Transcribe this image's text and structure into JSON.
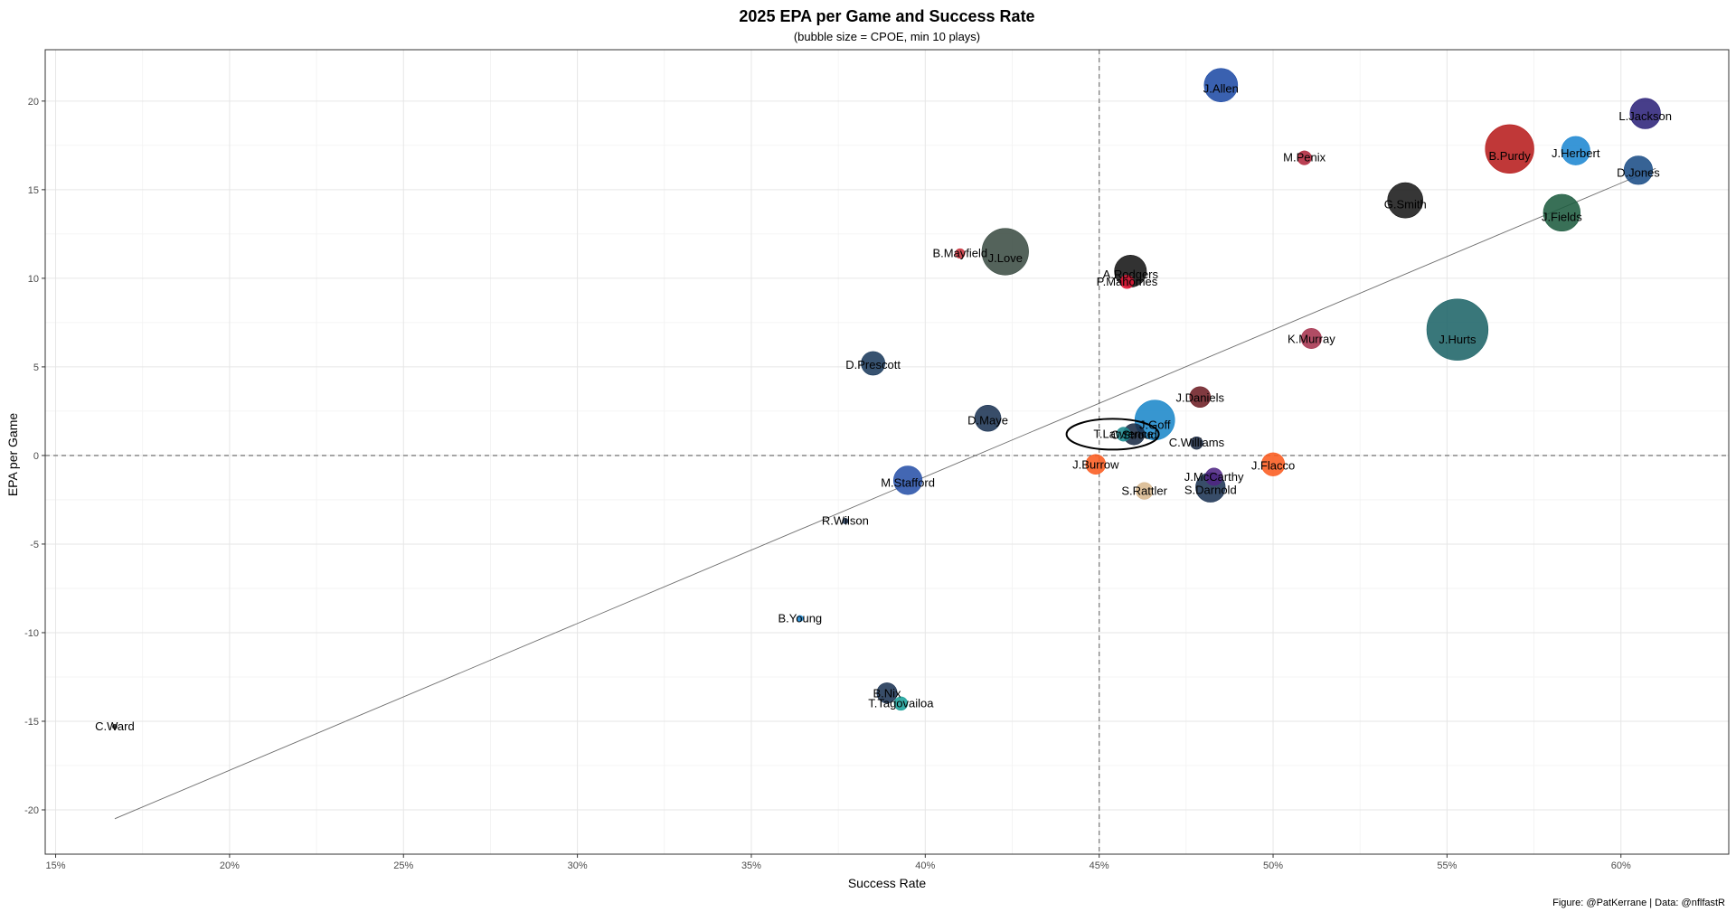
{
  "chart_data": {
    "type": "scatter",
    "title": "2025 EPA per Game and Success Rate",
    "subtitle": "(bubble size = CPOE, min 10 plays)",
    "xlabel": "Success Rate",
    "ylabel": "EPA per Game",
    "caption": "Figure: @PatKerrane | Data: @nflfastR",
    "xlim": [
      0.147,
      0.631
    ],
    "ylim": [
      -22.5,
      22.9
    ],
    "x_ticks": [
      0.15,
      0.2,
      0.25,
      0.3,
      0.35,
      0.4,
      0.45,
      0.5,
      0.55,
      0.6
    ],
    "x_tick_labels": [
      "15%",
      "20%",
      "25%",
      "30%",
      "35%",
      "40%",
      "45%",
      "50%",
      "55%",
      "60%"
    ],
    "y_ticks": [
      -20,
      -15,
      -10,
      -5,
      0,
      5,
      10,
      15,
      20
    ],
    "y_tick_labels": [
      "-20",
      "-15",
      "-10",
      "-5",
      "0",
      "5",
      "10",
      "15",
      "20"
    ],
    "grid": true,
    "reference_lines": {
      "x": 0.45,
      "y": 0
    },
    "trend_line": {
      "x": [
        0.167,
        0.61
      ],
      "y": [
        -20.5,
        16.2
      ]
    },
    "highlight": "T.Lawrence",
    "points": [
      {
        "name": "J.Allen",
        "x": 0.485,
        "y": 20.9,
        "size": 6.3,
        "color": "#1f4ba5"
      },
      {
        "name": "L.Jackson",
        "x": 0.607,
        "y": 19.3,
        "size": 5.7,
        "color": "#2d237a"
      },
      {
        "name": "B.Purdy",
        "x": 0.568,
        "y": 17.3,
        "size": 9.4,
        "color": "#b71c1c"
      },
      {
        "name": "J.Herbert",
        "x": 0.587,
        "y": 17.2,
        "size": 5.3,
        "color": "#1e88d2"
      },
      {
        "name": "M.Penix",
        "x": 0.509,
        "y": 16.8,
        "size": 2.3,
        "color": "#b0273c"
      },
      {
        "name": "D.Jones",
        "x": 0.605,
        "y": 16.1,
        "size": 5.3,
        "color": "#1b4d86"
      },
      {
        "name": "G.Smith",
        "x": 0.538,
        "y": 14.4,
        "size": 6.7,
        "color": "#1a1a1a"
      },
      {
        "name": "J.Fields",
        "x": 0.583,
        "y": 13.7,
        "size": 7.0,
        "color": "#1e5c40"
      },
      {
        "name": "J.Love",
        "x": 0.423,
        "y": 11.5,
        "size": 9.0,
        "color": "#3c4d44"
      },
      {
        "name": "B.Mayfield",
        "x": 0.41,
        "y": 11.4,
        "size": 1.4,
        "color": "#c8323c"
      },
      {
        "name": "A.Rodgers",
        "x": 0.459,
        "y": 10.4,
        "size": 6.0,
        "color": "#161616"
      },
      {
        "name": "P.Mahomes",
        "x": 0.458,
        "y": 9.8,
        "size": 2.2,
        "color": "#e31837"
      },
      {
        "name": "J.Hurts",
        "x": 0.553,
        "y": 7.1,
        "size": 12.0,
        "color": "#1e6468"
      },
      {
        "name": "K.Murray",
        "x": 0.511,
        "y": 6.6,
        "size": 3.6,
        "color": "#a6334e"
      },
      {
        "name": "D.Prescott",
        "x": 0.385,
        "y": 5.2,
        "size": 4.3,
        "color": "#1b3a5c"
      },
      {
        "name": "J.Daniels",
        "x": 0.479,
        "y": 3.3,
        "size": 3.7,
        "color": "#6e1f26"
      },
      {
        "name": "D.Maye",
        "x": 0.418,
        "y": 2.1,
        "size": 4.8,
        "color": "#1c3454"
      },
      {
        "name": "J.Goff",
        "x": 0.466,
        "y": 2.0,
        "size": 7.6,
        "color": "#1b87c9"
      },
      {
        "name": "C.Stroud",
        "x": 0.46,
        "y": 1.2,
        "size": 3.8,
        "color": "#1a2b45"
      },
      {
        "name": "T.Lawrence",
        "x": 0.457,
        "y": 1.2,
        "size": 2.3,
        "color": "#1d8a8e"
      },
      {
        "name": "C.Williams",
        "x": 0.478,
        "y": 0.7,
        "size": 2.0,
        "color": "#1b2a44"
      },
      {
        "name": "J.Flacco",
        "x": 0.5,
        "y": -0.5,
        "size": 4.2,
        "color": "#fb5b1f"
      },
      {
        "name": "J.Burrow",
        "x": 0.449,
        "y": -0.5,
        "size": 3.5,
        "color": "#fb5b1f"
      },
      {
        "name": "J.McCarthy",
        "x": 0.483,
        "y": -1.2,
        "size": 3.0,
        "color": "#4f2683"
      },
      {
        "name": "S.Darnold",
        "x": 0.482,
        "y": -1.8,
        "size": 5.5,
        "color": "#1c3454"
      },
      {
        "name": "S.Rattler",
        "x": 0.463,
        "y": -2.0,
        "size": 2.9,
        "color": "#d8b88e"
      },
      {
        "name": "M.Stafford",
        "x": 0.395,
        "y": -1.4,
        "size": 5.3,
        "color": "#2952a8"
      },
      {
        "name": "R.Wilson",
        "x": 0.377,
        "y": -3.7,
        "size": 0.6,
        "color": "#1c3454"
      },
      {
        "name": "B.Young",
        "x": 0.364,
        "y": -9.2,
        "size": 0.7,
        "color": "#1e88d2"
      },
      {
        "name": "B.Nix",
        "x": 0.389,
        "y": -13.4,
        "size": 3.6,
        "color": "#1c3454"
      },
      {
        "name": "T.Tagovailoa",
        "x": 0.393,
        "y": -14.0,
        "size": 2.2,
        "color": "#1aa19a"
      },
      {
        "name": "C.Ward",
        "x": 0.167,
        "y": -15.3,
        "size": 0.4,
        "color": "#222222"
      }
    ]
  }
}
